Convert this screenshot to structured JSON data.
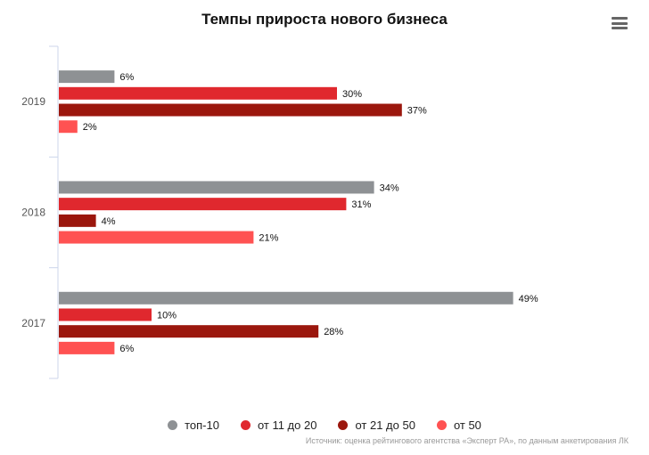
{
  "chart_data": {
    "type": "bar",
    "orientation": "horizontal",
    "title": "Темпы прироста нового бизнеса",
    "categories": [
      "2019",
      "2018",
      "2017"
    ],
    "series": [
      {
        "name": "топ-10",
        "color": "#8e9194",
        "values": [
          6,
          34,
          49
        ]
      },
      {
        "name": "от 11 до 20",
        "color": "#e0282e",
        "values": [
          30,
          31,
          10
        ]
      },
      {
        "name": "от 21 до 50",
        "color": "#9b170d",
        "values": [
          37,
          4,
          28
        ]
      },
      {
        "name": "от 50",
        "color": "#ff5252",
        "values": [
          2,
          21,
          6
        ]
      }
    ],
    "value_suffix": "%",
    "xlim": [
      0,
      63
    ],
    "grid": false,
    "legend_position": "bottom",
    "source": "Источник: оценка рейтингового агентства «Эксперт РА», по данным анкетирования ЛК"
  },
  "menu_icon": "hamburger-menu-icon"
}
